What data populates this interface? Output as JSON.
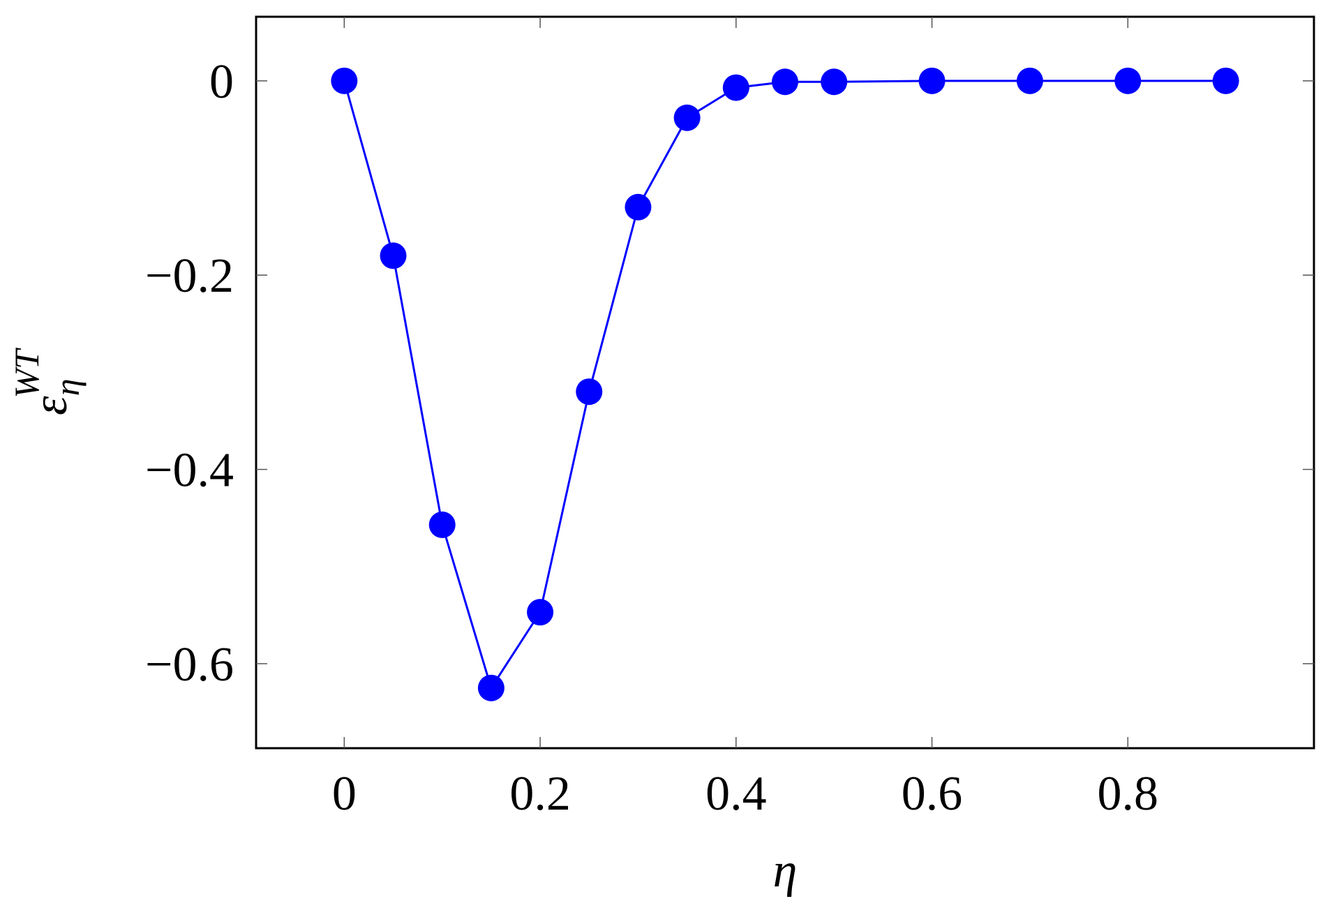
{
  "chart_data": {
    "type": "line",
    "xlabel": "η",
    "ylabel": {
      "base": "ε",
      "sub": "η",
      "sup": "WT"
    },
    "x": [
      0,
      0.05,
      0.1,
      0.15,
      0.2,
      0.25,
      0.3,
      0.35,
      0.4,
      0.45,
      0.5,
      0.6,
      0.7,
      0.8,
      0.9
    ],
    "series": [
      {
        "color": "#0000ff",
        "values": [
          0,
          -0.18,
          -0.457,
          -0.625,
          -0.547,
          -0.32,
          -0.13,
          -0.038,
          -0.007,
          -0.001,
          -0.001,
          0,
          0,
          0,
          0
        ]
      }
    ],
    "xlim": [
      -0.09,
      0.99
    ],
    "ylim": [
      -0.687,
      0.066
    ],
    "xticks": [
      0,
      0.2,
      0.4,
      0.6,
      0.8
    ],
    "yticks": [
      {
        "value": -0.6,
        "label": "−0.6"
      },
      {
        "value": -0.4,
        "label": "−0.4"
      },
      {
        "value": -0.2,
        "label": "−0.2"
      },
      0
    ]
  }
}
